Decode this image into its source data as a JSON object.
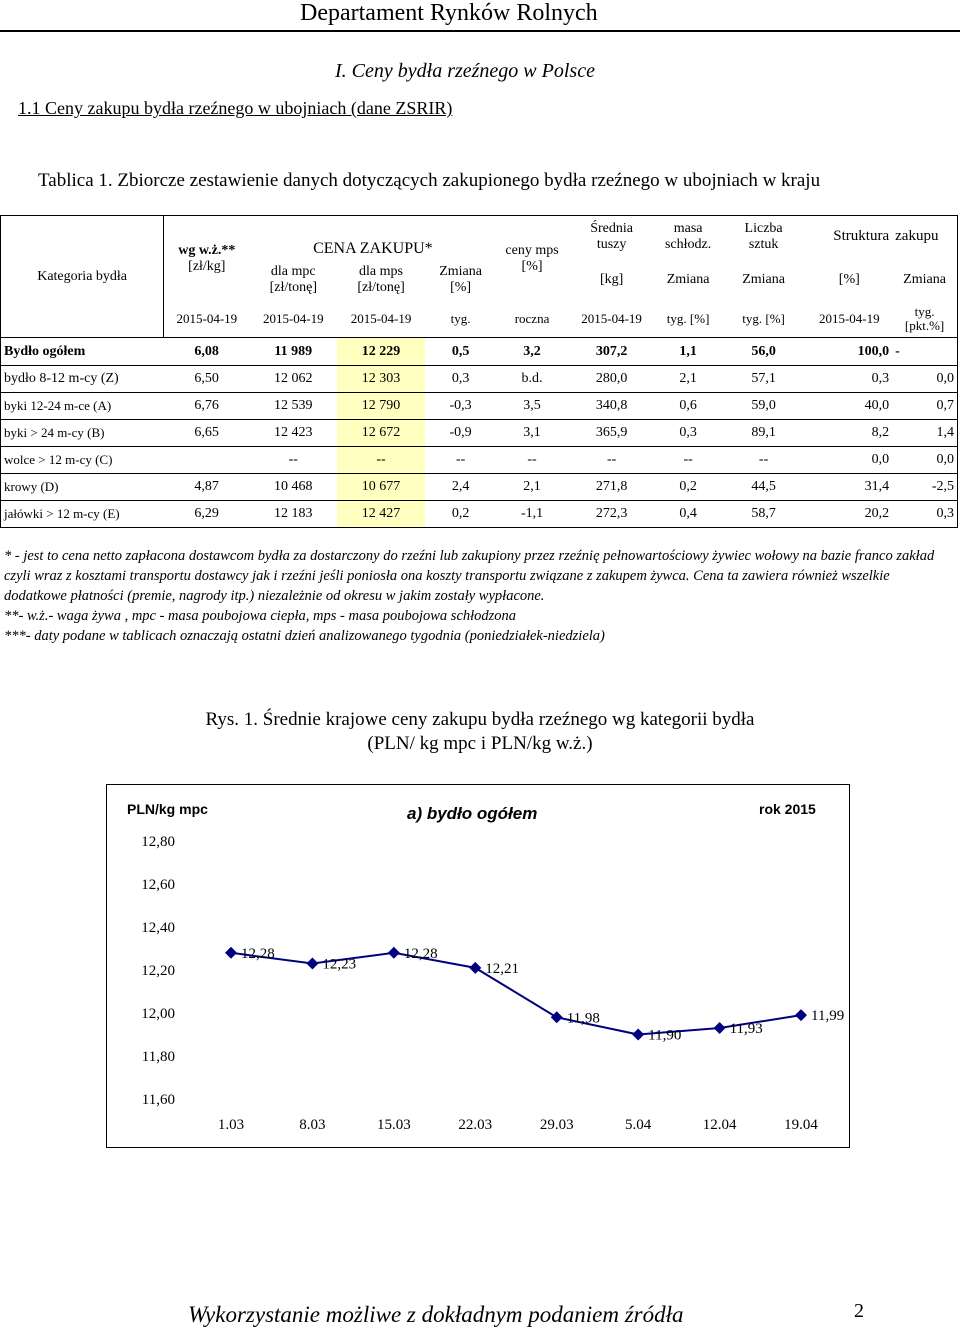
{
  "header": {
    "title": "Departament Rynków Rolnych"
  },
  "section": {
    "title": "I.  Ceny bydła rzeźnego w Polsce"
  },
  "subsection": {
    "title": "1.1  Ceny zakupu bydła rzeźnego w ubojniach (dane ZSRIR)"
  },
  "table": {
    "caption": "Tablica 1. Zbiorcze zestawienie danych dotyczących zakupionego bydła rzeźnego w ubojniach w kraju",
    "headers": {
      "kategoria": "Kategoria bydła",
      "cena_zakupu": "CENA ZAKUPU*",
      "wgwz": "wg w.ż.**",
      "wgwz_unit": "[zł/kg]",
      "mpc": "dla mpc",
      "mpc_unit": "[zł/tonę]",
      "mps": "dla mps",
      "mps_unit": "[zł/tonę]",
      "zmiana": "Zmiana",
      "zmiana_unit": "[%]",
      "ceny_mps": "ceny mps",
      "ceny_mps_unit": "[%]",
      "srednia": "Średnia",
      "tuszy": "tuszy",
      "masa": "masa",
      "schlodz": "schłodz.",
      "liczba": "Liczba",
      "sztuk": "sztuk",
      "struktura": "Struktura",
      "zakupu": "zakupu",
      "kg": "[kg]",
      "zmiana2": "Zmiana",
      "zmiana3": "Zmiana",
      "proc": "[%]",
      "zmiana4": "Zmiana",
      "d1": "2015-04-19",
      "d2": "2015-04-19",
      "d3": "2015-04-19",
      "tyg": "tyg.",
      "roczna": "roczna",
      "d4": "2015-04-19",
      "tygp1": "tyg. [%]",
      "tygp2": "tyg. [%]",
      "d5": "2015-04-19",
      "tygpkt": "tyg. [pkt.%]"
    },
    "rows": [
      {
        "name": "Bydło ogółem",
        "wz": "6,08",
        "mpc": "11 989",
        "mps": "12 229",
        "zm": "0,5",
        "roczna": "3,2",
        "masa": "307,2",
        "masa_zm": "1,1",
        "szt_zm": "56,0",
        "str": "100,0",
        "str_zm": "-"
      },
      {
        "name": "bydło 8-12 m-cy (Z)",
        "wz": "6,50",
        "mpc": "12 062",
        "mps": "12 303",
        "zm": "0,3",
        "roczna": "b.d.",
        "masa": "280,0",
        "masa_zm": "2,1",
        "szt_zm": "57,1",
        "str": "0,3",
        "str_zm": "0,0"
      },
      {
        "name": "byki 12-24 m-ce (A)",
        "wz": "6,76",
        "mpc": "12 539",
        "mps": "12 790",
        "zm": "-0,3",
        "roczna": "3,5",
        "masa": "340,8",
        "masa_zm": "0,6",
        "szt_zm": "59,0",
        "str": "40,0",
        "str_zm": "0,7"
      },
      {
        "name": "byki > 24 m-cy (B)",
        "wz": "6,65",
        "mpc": "12 423",
        "mps": "12 672",
        "zm": "-0,9",
        "roczna": "3,1",
        "masa": "365,9",
        "masa_zm": "0,3",
        "szt_zm": "89,1",
        "str": "8,2",
        "str_zm": "1,4"
      },
      {
        "name": "wolce > 12 m-cy (C)",
        "wz": "",
        "mpc": "--",
        "mps": "--",
        "zm": "--",
        "roczna": "--",
        "masa": "--",
        "masa_zm": "--",
        "szt_zm": "--",
        "str": "0,0",
        "str_zm": "0,0"
      },
      {
        "name": "krowy (D)",
        "wz": "4,87",
        "mpc": "10 468",
        "mps": "10 677",
        "zm": "2,4",
        "roczna": "2,1",
        "masa": "271,8",
        "masa_zm": "0,2",
        "szt_zm": "44,5",
        "str": "31,4",
        "str_zm": "-2,5"
      },
      {
        "name": "jałówki > 12 m-cy (E)",
        "wz": "6,29",
        "mpc": "12 183",
        "mps": "12 427",
        "zm": "0,2",
        "roczna": "-1,1",
        "masa": "272,3",
        "masa_zm": "0,4",
        "szt_zm": "58,7",
        "str": "20,2",
        "str_zm": "0,3"
      }
    ]
  },
  "footnotes": [
    "* - jest to cena netto zapłacona dostawcom bydła za dostarczony do rzeźni lub zakupiony przez rzeźnię pełnowartościowy żywiec wołowy na bazie franco zakład czyli wraz z kosztami transportu dostawcy jak i rzeźni jeśli poniosła ona koszty transportu związane z zakupem  żywca. Cena ta zawiera  również wszelkie dodatkowe płatności (premie, nagrody itp.) niezależnie od okresu w jakim zostały wypłacone.",
    "**-  w.ż.- waga żywa , mpc - masa poubojowa ciepła, mps - masa poubojowa schłodzona",
    "***- daty podane w tablicach oznaczają ostatni dzień analizowanego tygodnia (poniedziałek-niedziela)"
  ],
  "figure": {
    "caption1": "Rys. 1. Średnie krajowe ceny zakupu bydła rzeźnego wg kategorii bydła",
    "caption2": "(PLN/ kg mpc i PLN/kg w.ż.)"
  },
  "chart_data": {
    "type": "line",
    "title": "a) bydło ogółem",
    "ylabel": "PLN/kg mpc",
    "note": "rok 2015",
    "categories": [
      "1.03",
      "8.03",
      "15.03",
      "22.03",
      "29.03",
      "5.04",
      "12.04",
      "19.04"
    ],
    "series": [
      {
        "values": [
          12.28,
          12.23,
          12.28,
          12.21,
          11.98,
          11.9,
          11.93,
          11.99
        ],
        "labels": [
          "12,28",
          "12,23",
          "12,28",
          "12,21",
          "11,98",
          "11,90",
          "11,93",
          "11,99"
        ]
      }
    ],
    "ylim": [
      11.6,
      12.8
    ],
    "yticks": [
      "12,80",
      "12,60",
      "12,40",
      "12,20",
      "12,00",
      "11,80",
      "11,60"
    ],
    "grid": false,
    "line_color": "#000080"
  },
  "page_footer": {
    "text": "Wykorzystanie możliwe z dokładnym podaniem źródła",
    "page": "2"
  }
}
